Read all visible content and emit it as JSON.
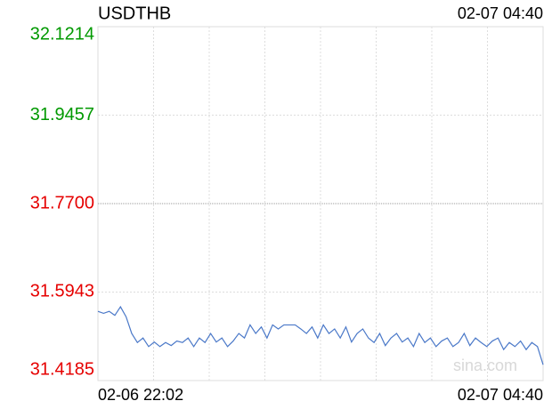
{
  "chart_data": {
    "type": "line",
    "title": "USDTHB",
    "timestamp": "02-07 04:40",
    "watermark": "sina.com",
    "categories": [
      "02-06 22:02",
      null,
      null,
      null,
      null,
      null,
      null,
      null,
      null,
      null,
      null,
      null,
      null,
      null,
      null,
      null,
      null,
      null,
      null,
      null,
      null,
      null,
      null,
      null,
      null,
      null,
      null,
      null,
      null,
      null,
      null,
      null,
      null,
      null,
      null,
      null,
      null,
      null,
      null,
      null,
      null,
      null,
      null,
      null,
      null,
      null,
      null,
      null,
      null,
      null,
      null,
      null,
      null,
      null,
      null,
      null,
      null,
      null,
      null,
      null,
      null,
      null,
      null,
      null,
      null,
      null,
      null,
      null,
      null,
      null,
      null,
      null,
      null,
      null,
      null,
      null,
      null,
      null,
      null,
      "02-07 04:40"
    ],
    "values": [
      31.556,
      31.552,
      31.556,
      31.548,
      31.565,
      31.545,
      31.512,
      31.494,
      31.503,
      31.486,
      31.495,
      31.486,
      31.494,
      31.488,
      31.497,
      31.494,
      31.503,
      31.486,
      31.503,
      31.494,
      31.512,
      31.495,
      31.503,
      31.486,
      31.497,
      31.512,
      31.503,
      31.529,
      31.512,
      31.525,
      31.503,
      31.529,
      31.521,
      31.529,
      31.529,
      31.529,
      31.521,
      31.512,
      31.525,
      31.503,
      31.529,
      31.512,
      31.521,
      31.503,
      31.525,
      31.495,
      31.512,
      31.521,
      31.503,
      31.494,
      31.512,
      31.488,
      31.503,
      31.512,
      31.495,
      31.503,
      31.486,
      31.512,
      31.494,
      31.503,
      31.486,
      31.497,
      31.503,
      31.486,
      31.494,
      31.512,
      31.488,
      31.503,
      31.494,
      31.486,
      31.497,
      31.503,
      31.48,
      31.494,
      31.486,
      31.497,
      31.48,
      31.494,
      31.486,
      31.45
    ],
    "color": "#4a78c8",
    "ylim": [
      31.4185,
      32.1214
    ],
    "yticks": [
      {
        "value": 31.4185,
        "label": "31.4185"
      },
      {
        "value": 31.5943,
        "label": "31.5943"
      },
      {
        "value": 31.77,
        "label": "31.7700"
      },
      {
        "value": 31.9457,
        "label": "31.9457"
      },
      {
        "value": 32.1214,
        "label": "32.1214"
      }
    ],
    "reference": 31.77,
    "up_color": "#009900",
    "down_color": "#e60000",
    "grid": true
  }
}
